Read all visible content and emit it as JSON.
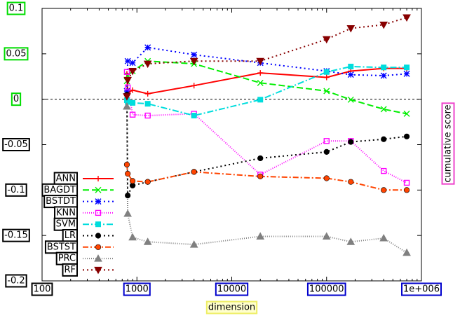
{
  "chart_data": {
    "type": "line",
    "xlabel": "dimension",
    "ylabel": "cumulative score",
    "x_scale": "log",
    "xlim": [
      100,
      1000000
    ],
    "ylim": [
      -0.2,
      0.1
    ],
    "x_ticks": [
      {
        "value": 100,
        "label": "100"
      },
      {
        "value": 1000,
        "label": "1000"
      },
      {
        "value": 10000,
        "label": "10000"
      },
      {
        "value": 100000,
        "label": "100000"
      },
      {
        "value": 1000000,
        "label": "1e+006"
      }
    ],
    "y_ticks": [
      {
        "value": 0.1,
        "label": "0.1"
      },
      {
        "value": 0.05,
        "label": "0.05"
      },
      {
        "value": 0,
        "label": "0"
      },
      {
        "value": -0.05,
        "label": "-0.05"
      },
      {
        "value": -0.1,
        "label": "-0.1"
      },
      {
        "value": -0.15,
        "label": "-0.15"
      },
      {
        "value": -0.2,
        "label": "-0.2"
      }
    ],
    "zero_line": true,
    "grid": false,
    "legend_position": "left",
    "series": [
      {
        "name": "ANN",
        "color": "#ff0000",
        "marker": "plus",
        "dash": "",
        "x": [
          784,
          800,
          900,
          1300,
          4000,
          20000,
          100000,
          180000,
          400000,
          700000
        ],
        "y": [
          0.028,
          0.007,
          0.01,
          0.006,
          0.015,
          0.029,
          0.024,
          0.031,
          0.034,
          0.034
        ]
      },
      {
        "name": "BAGDT",
        "color": "#00ee00",
        "marker": "x",
        "dash": "9,4",
        "x": [
          784,
          800,
          900,
          1300,
          4000,
          20000,
          100000,
          180000,
          400000,
          700000
        ],
        "y": [
          0.02,
          0.026,
          0.031,
          0.042,
          0.039,
          0.018,
          0.009,
          -0.0005,
          -0.011,
          -0.016
        ]
      },
      {
        "name": "BSTDT",
        "color": "#0000ff",
        "marker": "star",
        "dash": "2,4",
        "x": [
          784,
          800,
          900,
          1300,
          4000,
          20000,
          100000,
          180000,
          400000,
          700000
        ],
        "y": [
          0.009,
          0.042,
          0.04,
          0.057,
          0.049,
          0.04,
          0.031,
          0.027,
          0.026,
          0.028
        ]
      },
      {
        "name": "KNN",
        "color": "#ff00ff",
        "marker": "square",
        "dash": "1,2",
        "x": [
          784,
          800,
          900,
          1300,
          4000,
          20000,
          100000,
          180000,
          400000,
          700000
        ],
        "y": [
          0.03,
          0.013,
          -0.017,
          -0.018,
          -0.016,
          -0.083,
          -0.046,
          -0.046,
          -0.079,
          -0.092
        ]
      },
      {
        "name": "SVM",
        "color": "#00dddd",
        "marker": "fsquare",
        "dash": "9,3,2,3",
        "x": [
          784,
          800,
          900,
          1300,
          4000,
          20000,
          100000,
          180000,
          400000,
          700000
        ],
        "y": [
          -0.001,
          -0.003,
          -0.004,
          -0.005,
          -0.018,
          -0.0005,
          0.03,
          0.036,
          0.035,
          0.035
        ]
      },
      {
        "name": "LR",
        "color": "#000000",
        "marker": "fcircle",
        "dash": "2,4",
        "x": [
          784,
          800,
          900,
          1300,
          4000,
          20000,
          100000,
          180000,
          400000,
          700000
        ],
        "y": [
          0.005,
          -0.106,
          -0.095,
          -0.091,
          -0.08,
          -0.065,
          -0.058,
          -0.047,
          -0.044,
          -0.041
        ]
      },
      {
        "name": "BSTST",
        "color": "#ff4400",
        "marker": "fcircle",
        "dash": "8,3,2,3",
        "x": [
          784,
          800,
          900,
          1300,
          4000,
          20000,
          100000,
          180000,
          400000,
          700000
        ],
        "y": [
          -0.072,
          -0.082,
          -0.09,
          -0.091,
          -0.08,
          -0.085,
          -0.087,
          -0.091,
          -0.1,
          -0.1
        ]
      },
      {
        "name": "PRC",
        "color": "#808080",
        "marker": "ftriangle",
        "dash": "1,2",
        "x": [
          784,
          800,
          900,
          1300,
          4000,
          20000,
          100000,
          180000,
          400000,
          700000
        ],
        "y": [
          -0.008,
          -0.126,
          -0.152,
          -0.157,
          -0.16,
          -0.151,
          -0.151,
          -0.157,
          -0.153,
          -0.169
        ]
      },
      {
        "name": "RF",
        "color": "#880000",
        "marker": "fdtriangle",
        "dash": "2,4",
        "x": [
          784,
          800,
          900,
          1300,
          4000,
          20000,
          100000,
          180000,
          400000,
          700000
        ],
        "y": [
          0.003,
          0.021,
          0.031,
          0.039,
          0.042,
          0.042,
          0.066,
          0.078,
          0.082,
          0.09
        ]
      }
    ]
  }
}
